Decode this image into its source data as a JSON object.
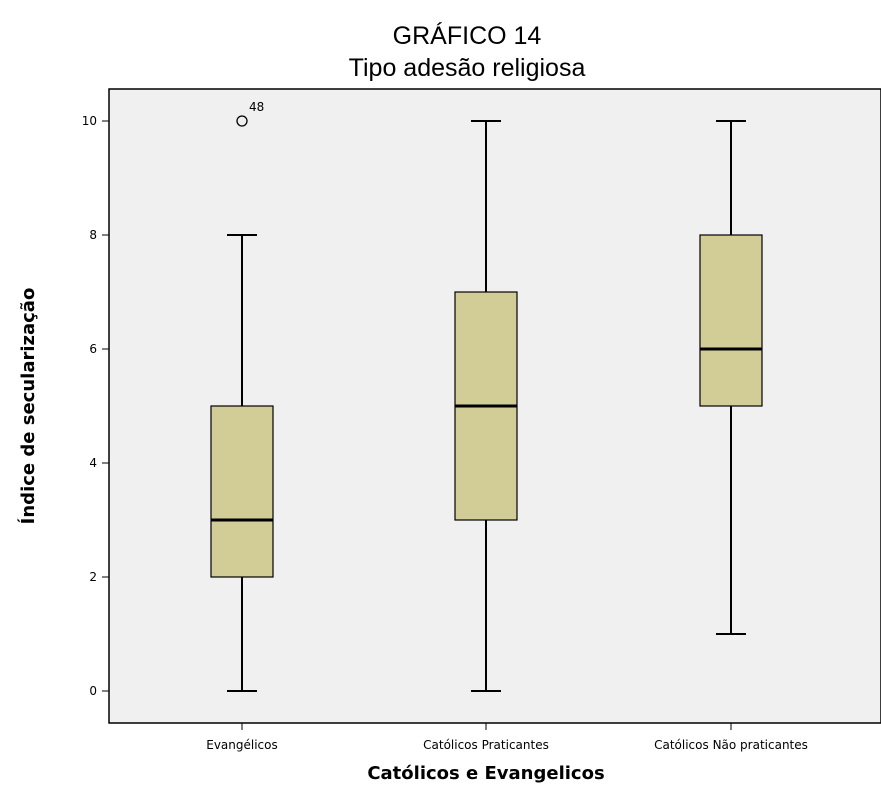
{
  "chart_data": {
    "type": "boxplot",
    "title": "GRÁFICO 14",
    "subtitle": "Tipo adesão religiosa",
    "xlabel": "Católicos e Evangelicos",
    "ylabel": "Índice de secularização",
    "ylim": [
      -0.6,
      10.6
    ],
    "yticks": [
      "0",
      "2",
      "4",
      "6",
      "8",
      "10"
    ],
    "grid": false,
    "legend": "none",
    "categories": [
      "Evangélicos",
      "Católicos Praticantes",
      "Católicos Não praticantes"
    ],
    "boxes": [
      {
        "category": "Evangélicos",
        "min": 0,
        "q1": 2,
        "median": 3,
        "q3": 5,
        "max": 8,
        "outliers": [
          {
            "value": 10,
            "label": "48"
          }
        ]
      },
      {
        "category": "Católicos Praticantes",
        "min": 0,
        "q1": 3,
        "median": 5,
        "q3": 7,
        "max": 10,
        "outliers": []
      },
      {
        "category": "Católicos Não praticantes",
        "min": 1,
        "q1": 5,
        "median": 6,
        "q3": 8,
        "max": 10,
        "outliers": []
      }
    ],
    "colors": {
      "plot_background": "#f0f0f0",
      "box_fill": "#d2cc96",
      "stroke": "#000000"
    }
  }
}
